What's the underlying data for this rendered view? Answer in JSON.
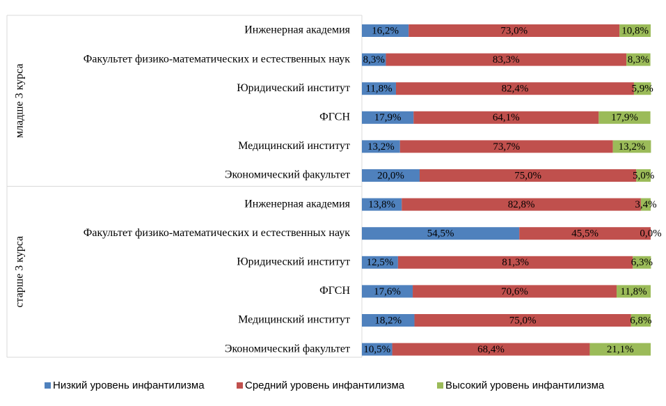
{
  "chart_data": {
    "type": "bar",
    "orientation": "horizontal",
    "stacked": "percent",
    "groups": [
      {
        "name": "младше 3 курса",
        "categories": [
          "Инженерная академия",
          "Факультет  физико-математических и естественных наук",
          "Юридический институт",
          "ФГСН",
          "Медицинский институт",
          "Экономический факультет"
        ]
      },
      {
        "name": "старше 3 курса",
        "categories": [
          "Инженерная академия",
          "Факультет  физико-математических и естественных наук",
          "Юридический институт",
          "ФГСН",
          "Медицинский институт",
          "Экономический факультет"
        ]
      }
    ],
    "series": [
      {
        "name": "Низкий уровень инфантилизма",
        "color": "#4F81BD",
        "values": [
          16.2,
          8.3,
          11.8,
          17.9,
          13.2,
          20.0,
          13.8,
          54.5,
          12.5,
          17.6,
          18.2,
          10.5
        ],
        "labels": [
          "16,2%",
          "8,3%",
          "11,8%",
          "17,9%",
          "13,2%",
          "20,0%",
          "13,8%",
          "54,5%",
          "12,5%",
          "17,6%",
          "18,2%",
          "10,5%"
        ]
      },
      {
        "name": "Средний уровень инфантилизма",
        "color": "#C0504D",
        "values": [
          73.0,
          83.3,
          82.4,
          64.1,
          73.7,
          75.0,
          82.8,
          45.5,
          81.3,
          70.6,
          75.0,
          68.4
        ],
        "labels": [
          "73,0%",
          "83,3%",
          "82,4%",
          "64,1%",
          "73,7%",
          "75,0%",
          "82,8%",
          "45,5%",
          "81,3%",
          "70,6%",
          "75,0%",
          "68,4%"
        ]
      },
      {
        "name": "Высокий уровень инфантилизма",
        "color": "#9BBB59",
        "values": [
          10.8,
          8.3,
          5.9,
          17.9,
          13.2,
          5.0,
          3.4,
          0.0,
          6.3,
          11.8,
          6.8,
          21.1
        ],
        "labels": [
          "10,8%",
          "8,3%",
          "5,9%",
          "17,9%",
          "13,2%",
          "5,0%",
          "3,4%",
          "0,0%",
          "6,3%",
          "11,8%",
          "6,8%",
          "21,1%"
        ]
      }
    ],
    "xlim": [
      0,
      100
    ],
    "legend_position": "bottom"
  }
}
